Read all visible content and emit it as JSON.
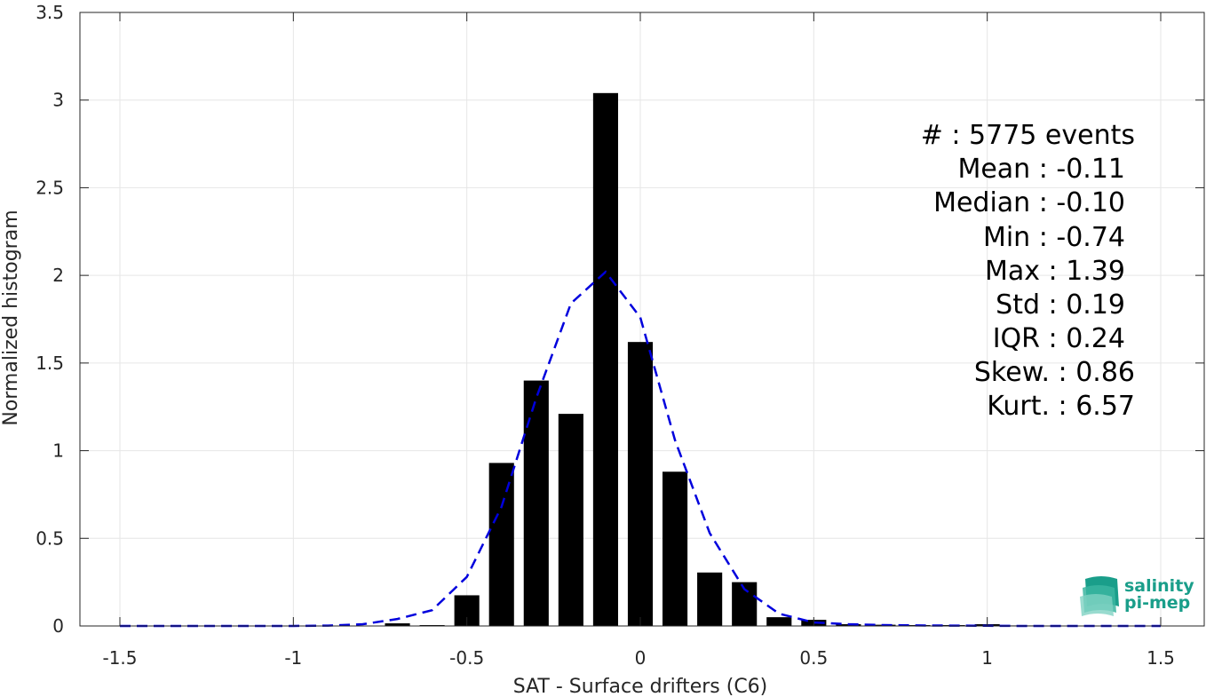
{
  "chart_data": {
    "type": "bar",
    "xlabel": "SAT - Surface drifters (C6)",
    "ylabel": "Normalized histogram",
    "xlim": [
      -1.5,
      1.5
    ],
    "ylim": [
      0,
      3.5
    ],
    "xticks": [
      -1.5,
      -1,
      -0.5,
      0,
      0.5,
      1,
      1.5
    ],
    "xtick_labels": [
      "-1.5",
      "-1",
      "-0.5",
      "0",
      "0.5",
      "1",
      "1.5"
    ],
    "yticks": [
      0,
      0.5,
      1,
      1.5,
      2,
      2.5,
      3,
      3.5
    ],
    "ytick_labels": [
      "0",
      "0.5",
      "1",
      "1.5",
      "2",
      "2.5",
      "3",
      "3.5"
    ],
    "grid": true,
    "bar_color": "#000000",
    "bins": [
      {
        "x": -0.7,
        "value": 0.015
      },
      {
        "x": -0.6,
        "value": 0.005
      },
      {
        "x": -0.5,
        "value": 0.175
      },
      {
        "x": -0.4,
        "value": 0.93
      },
      {
        "x": -0.3,
        "value": 1.4
      },
      {
        "x": -0.2,
        "value": 1.21
      },
      {
        "x": -0.1,
        "value": 3.04
      },
      {
        "x": 0.0,
        "value": 1.62
      },
      {
        "x": 0.1,
        "value": 0.88
      },
      {
        "x": 0.2,
        "value": 0.305
      },
      {
        "x": 0.3,
        "value": 0.25
      },
      {
        "x": 0.4,
        "value": 0.05
      },
      {
        "x": 0.5,
        "value": 0.035
      },
      {
        "x": 0.6,
        "value": 0.01
      },
      {
        "x": 0.7,
        "value": 0.007
      },
      {
        "x": 0.8,
        "value": 0.005
      },
      {
        "x": 0.9,
        "value": 0.005
      },
      {
        "x": 1.0,
        "value": 0.01
      },
      {
        "x": 1.1,
        "value": 0.003
      }
    ],
    "fit_curve": {
      "color": "#0000dd",
      "style": "dashed",
      "x": [
        -1.5,
        -1.4,
        -1.3,
        -1.2,
        -1.1,
        -1.0,
        -0.9,
        -0.8,
        -0.7,
        -0.6,
        -0.5,
        -0.4,
        -0.3,
        -0.2,
        -0.1,
        0.0,
        0.1,
        0.2,
        0.3,
        0.4,
        0.5,
        0.6,
        0.7,
        0.8,
        0.9,
        1.0,
        1.1,
        1.2,
        1.3,
        1.4,
        1.5
      ],
      "y": [
        0,
        0,
        0,
        0,
        0,
        0,
        0.002,
        0.01,
        0.04,
        0.09,
        0.28,
        0.68,
        1.3,
        1.84,
        2.02,
        1.76,
        1.06,
        0.53,
        0.21,
        0.07,
        0.02,
        0.01,
        0.005,
        0.003,
        0.002,
        0.001,
        0,
        0,
        0,
        0,
        0
      ]
    }
  },
  "stats": [
    {
      "label": "#  : 5775 events"
    },
    {
      "label": "Mean : -0.11"
    },
    {
      "label": "Median : -0.10"
    },
    {
      "label": "Min : -0.74"
    },
    {
      "label": "Max : 1.39"
    },
    {
      "label": "Std : 0.19"
    },
    {
      "label": "IQR : 0.24"
    },
    {
      "label": "Skew. : 0.86"
    },
    {
      "label": "Kurt. : 6.57"
    }
  ],
  "logo": {
    "line1": "salinity",
    "line2": "pi-mep",
    "color": "#1a9e8a"
  }
}
